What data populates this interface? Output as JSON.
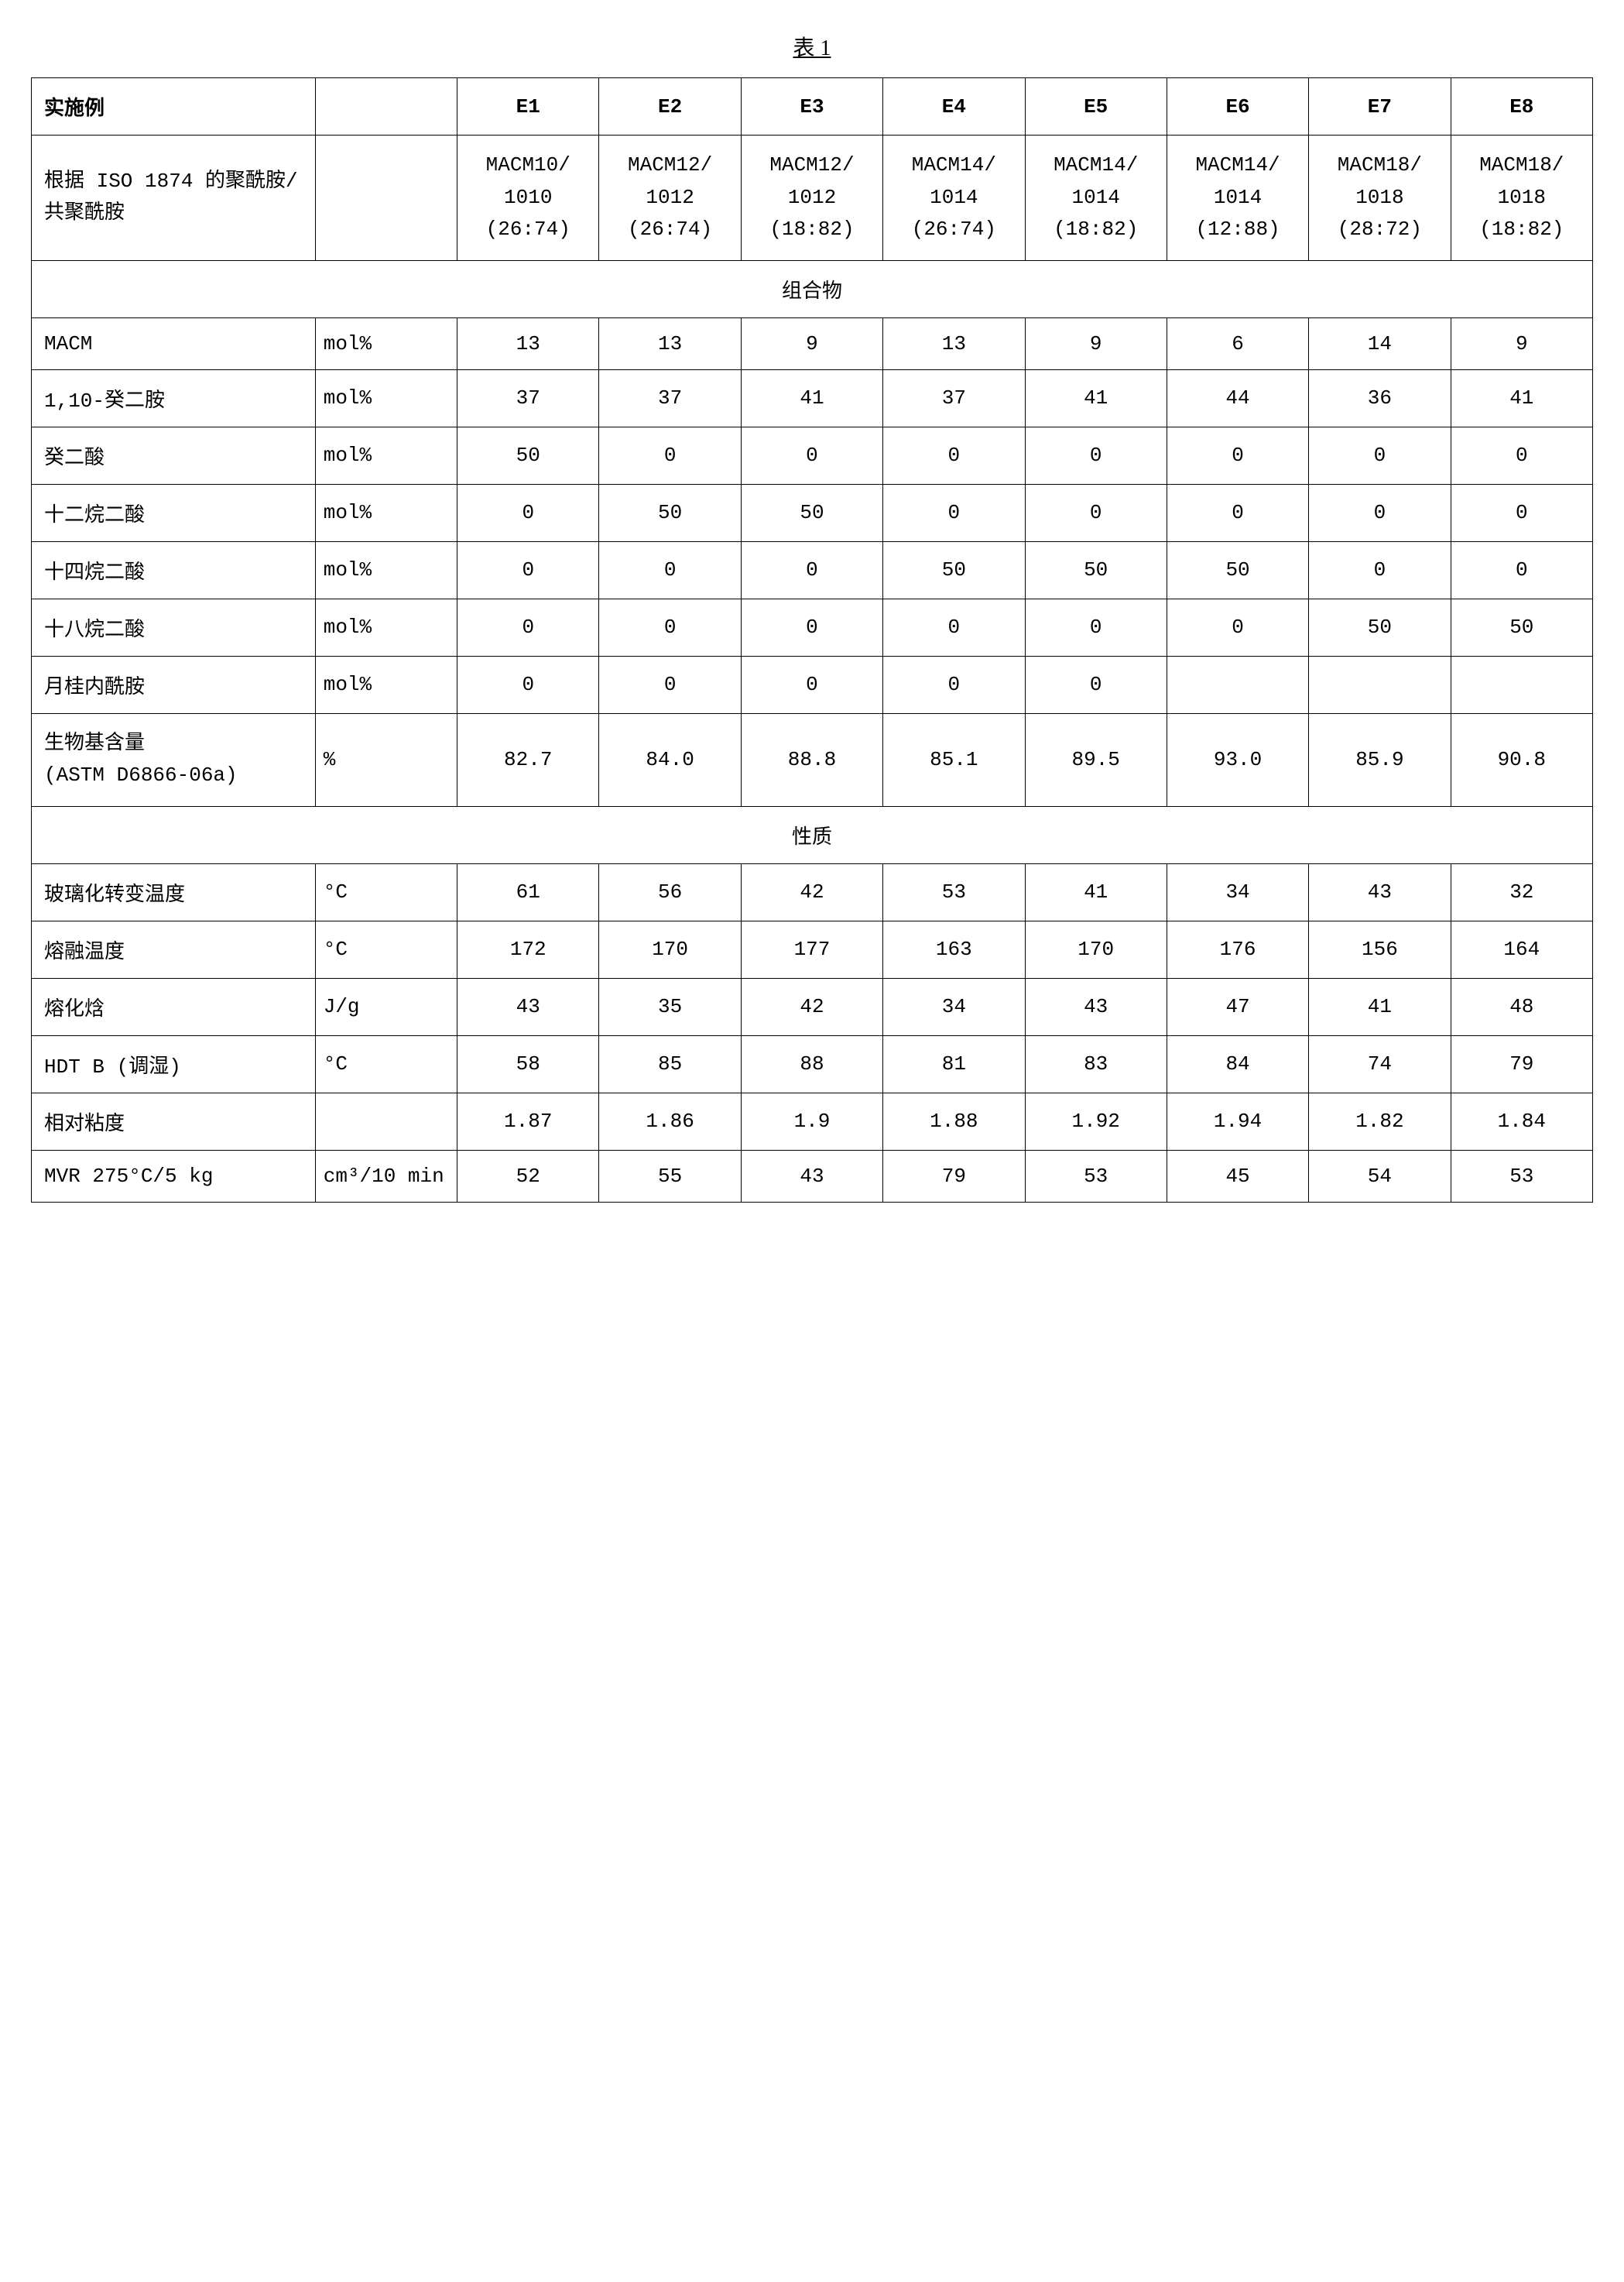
{
  "title": "表 1",
  "headers": {
    "label": "实施例",
    "unit": "",
    "cols": [
      "E1",
      "E2",
      "E3",
      "E4",
      "E5",
      "E6",
      "E7",
      "E8"
    ]
  },
  "polyamide_row": {
    "label_line1": "根据 ISO 1874 的聚酰胺/",
    "label_line2": "共聚酰胺",
    "cells": [
      [
        "MACM10/",
        "1010",
        "(26:74)"
      ],
      [
        "MACM12/",
        "1012",
        "(26:74)"
      ],
      [
        "MACM12/",
        "1012",
        "(18:82)"
      ],
      [
        "MACM14/",
        "1014",
        "(26:74)"
      ],
      [
        "MACM14/",
        "1014",
        "(18:82)"
      ],
      [
        "MACM14/",
        "1014",
        "(12:88)"
      ],
      [
        "MACM18/",
        "1018",
        "(28:72)"
      ],
      [
        "MACM18/",
        "1018",
        "(18:82)"
      ]
    ]
  },
  "section_comp": "组合物",
  "comp_rows": [
    {
      "label": "MACM",
      "unit": "mol%",
      "vals": [
        "13",
        "13",
        "9",
        "13",
        "9",
        "6",
        "14",
        "9"
      ]
    },
    {
      "label": "1,10-癸二胺",
      "unit": "mol%",
      "vals": [
        "37",
        "37",
        "41",
        "37",
        "41",
        "44",
        "36",
        "41"
      ]
    },
    {
      "label": "癸二酸",
      "unit": "mol%",
      "vals": [
        "50",
        "0",
        "0",
        "0",
        "0",
        "0",
        "0",
        "0"
      ]
    },
    {
      "label": "十二烷二酸",
      "unit": "mol%",
      "vals": [
        "0",
        "50",
        "50",
        "0",
        "0",
        "0",
        "0",
        "0"
      ]
    },
    {
      "label": "十四烷二酸",
      "unit": "mol%",
      "vals": [
        "0",
        "0",
        "0",
        "50",
        "50",
        "50",
        "0",
        "0"
      ]
    },
    {
      "label": "十八烷二酸",
      "unit": "mol%",
      "vals": [
        "0",
        "0",
        "0",
        "0",
        "0",
        "0",
        "50",
        "50"
      ]
    },
    {
      "label": "月桂内酰胺",
      "unit": "mol%",
      "vals": [
        "0",
        "0",
        "0",
        "0",
        "0",
        "",
        "",
        ""
      ]
    }
  ],
  "bio_row": {
    "label_line1": "生物基含量",
    "label_line2": "(ASTM D6866-06a)",
    "unit": "%",
    "vals": [
      "82.7",
      "84.0",
      "88.8",
      "85.1",
      "89.5",
      "93.0",
      "85.9",
      "90.8"
    ]
  },
  "section_prop": "性质",
  "prop_rows": [
    {
      "label": "玻璃化转变温度",
      "unit": "°C",
      "vals": [
        "61",
        "56",
        "42",
        "53",
        "41",
        "34",
        "43",
        "32"
      ]
    },
    {
      "label": "熔融温度",
      "unit": "°C",
      "vals": [
        "172",
        "170",
        "177",
        "163",
        "170",
        "176",
        "156",
        "164"
      ]
    },
    {
      "label": "熔化焓",
      "unit": "J/g",
      "vals": [
        "43",
        "35",
        "42",
        "34",
        "43",
        "47",
        "41",
        "48"
      ]
    },
    {
      "label": "HDT B (调湿)",
      "unit": "°C",
      "vals": [
        "58",
        "85",
        "88",
        "81",
        "83",
        "84",
        "74",
        "79"
      ]
    },
    {
      "label": "相对粘度",
      "unit": "",
      "vals": [
        "1.87",
        "1.86",
        "1.9",
        "1.88",
        "1.92",
        "1.94",
        "1.82",
        "1.84"
      ]
    },
    {
      "label": "MVR 275°C/5 kg",
      "unit": "cm³/10 min",
      "vals": [
        "52",
        "55",
        "43",
        "79",
        "53",
        "45",
        "54",
        "53"
      ]
    }
  ],
  "colors": {
    "border": "#000000",
    "bg": "#ffffff",
    "text": "#000000"
  }
}
